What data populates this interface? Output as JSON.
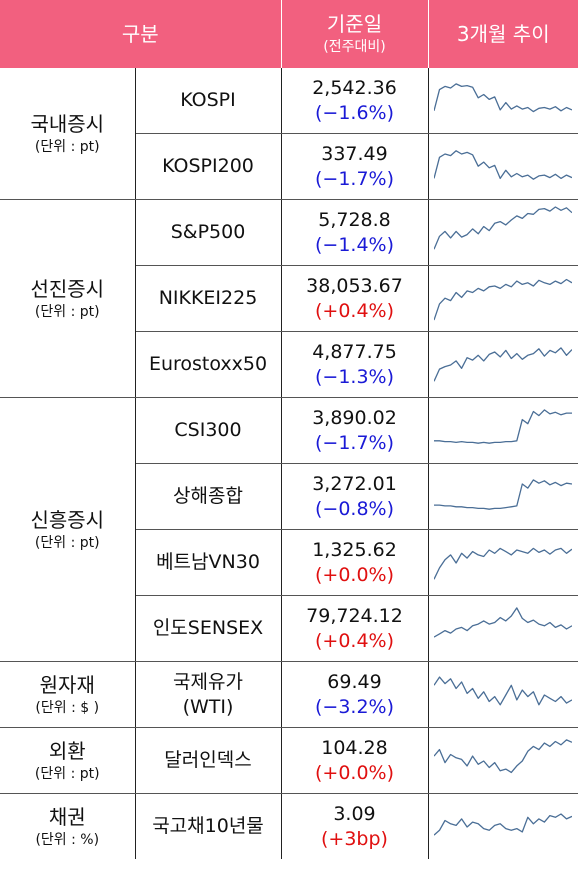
{
  "header": {
    "category": "구분",
    "base_date": "기준일",
    "base_date_sub": "(전주대비)",
    "trend": "3개월 추이"
  },
  "colors": {
    "header_bg": "#f2607f",
    "negative": "#1a1ad6",
    "positive": "#e01010",
    "sparkline": "#4a6e96"
  },
  "groups": [
    {
      "name": "국내증시",
      "unit": "(단위 : pt)"
    },
    {
      "name": "선진증시",
      "unit": "(단위 : pt)"
    },
    {
      "name": "신흥증시",
      "unit": "(단위 : pt)"
    },
    {
      "name": "원자재",
      "unit": "(단위 : $ )"
    },
    {
      "name": "외환",
      "unit": "(단위 : pt)"
    },
    {
      "name": "채권",
      "unit": "(단위 : %)"
    }
  ],
  "rows": [
    {
      "label": "KOSPI",
      "value": "2,542.36",
      "change": "(−1.6%)",
      "dir": "neg"
    },
    {
      "label": "KOSPI200",
      "value": "337.49",
      "change": "(−1.7%)",
      "dir": "neg"
    },
    {
      "label": "S&P500",
      "value": "5,728.8",
      "change": "(−1.4%)",
      "dir": "neg"
    },
    {
      "label": "NIKKEI225",
      "value": "38,053.67",
      "change": "(+0.4%)",
      "dir": "pos"
    },
    {
      "label": "Eurostoxx50",
      "value": "4,877.75",
      "change": "(−1.3%)",
      "dir": "neg"
    },
    {
      "label": "CSI300",
      "value": "3,890.02",
      "change": "(−1.7%)",
      "dir": "neg"
    },
    {
      "label": "상해종합",
      "value": "3,272.01",
      "change": "(−0.8%)",
      "dir": "neg"
    },
    {
      "label": "베트남VN30",
      "value": "1,325.62",
      "change": "(+0.0%)",
      "dir": "pos"
    },
    {
      "label": "인도SENSEX",
      "value": "79,724.12",
      "change": "(+0.4%)",
      "dir": "pos"
    },
    {
      "label": "국제유가",
      "label2": "(WTI)",
      "value": "69.49",
      "change": "(−3.2%)",
      "dir": "neg"
    },
    {
      "label": "달러인덱스",
      "value": "104.28",
      "change": "(+0.0%)",
      "dir": "pos"
    },
    {
      "label": "국고채10년물",
      "value": "3.09",
      "change": "(+3bp)",
      "dir": "pos"
    }
  ],
  "chart_data": [
    {
      "type": "line",
      "name": "KOSPI",
      "values": [
        20,
        46,
        50,
        48,
        53,
        50,
        51,
        49,
        36,
        40,
        34,
        37,
        21,
        30,
        22,
        26,
        22,
        24,
        19,
        23,
        24,
        22,
        25,
        20,
        24,
        21
      ]
    },
    {
      "type": "line",
      "name": "KOSPI200",
      "values": [
        18,
        44,
        48,
        46,
        52,
        48,
        50,
        47,
        33,
        38,
        31,
        34,
        18,
        28,
        20,
        24,
        20,
        22,
        17,
        21,
        22,
        19,
        23,
        18,
        22,
        19
      ]
    },
    {
      "type": "line",
      "name": "S&P500",
      "values": [
        12,
        28,
        34,
        26,
        34,
        27,
        30,
        37,
        31,
        40,
        35,
        44,
        46,
        42,
        48,
        53,
        50,
        56,
        55,
        61,
        62,
        59,
        64,
        60,
        63,
        57
      ]
    },
    {
      "type": "line",
      "name": "NIKKEI225",
      "values": [
        6,
        26,
        33,
        30,
        40,
        34,
        42,
        40,
        45,
        42,
        47,
        48,
        45,
        50,
        47,
        54,
        50,
        52,
        48,
        55,
        52,
        50,
        54,
        51,
        56,
        52
      ]
    },
    {
      "type": "line",
      "name": "Eurostoxx50",
      "values": [
        12,
        27,
        30,
        32,
        37,
        28,
        41,
        38,
        44,
        37,
        45,
        48,
        42,
        50,
        40,
        46,
        39,
        44,
        46,
        52,
        43,
        50,
        47,
        53,
        44,
        51
      ]
    },
    {
      "type": "line",
      "name": "CSI300",
      "values": [
        20,
        20,
        19,
        19,
        18,
        19,
        18,
        18,
        17,
        18,
        17,
        18,
        18,
        19,
        19,
        20,
        46,
        41,
        56,
        51,
        58,
        53,
        55,
        52,
        54,
        54
      ]
    },
    {
      "type": "line",
      "name": "상해종합",
      "values": [
        22,
        22,
        21,
        21,
        20,
        20,
        19,
        19,
        18,
        18,
        17,
        18,
        18,
        19,
        20,
        21,
        48,
        43,
        53,
        49,
        52,
        47,
        50,
        46,
        49,
        48
      ]
    },
    {
      "type": "line",
      "name": "베트남VN30",
      "values": [
        12,
        26,
        36,
        42,
        32,
        44,
        38,
        46,
        42,
        40,
        48,
        44,
        50,
        46,
        42,
        48,
        46,
        44,
        50,
        45,
        48,
        43,
        48,
        50,
        44,
        49
      ]
    },
    {
      "type": "line",
      "name": "인도SENSEX",
      "values": [
        22,
        26,
        30,
        27,
        32,
        34,
        30,
        36,
        38,
        42,
        38,
        40,
        46,
        42,
        48,
        58,
        45,
        40,
        43,
        38,
        36,
        40,
        34,
        37,
        32,
        36
      ]
    },
    {
      "type": "line",
      "name": "국제유가",
      "values": [
        44,
        54,
        46,
        52,
        40,
        48,
        34,
        40,
        28,
        36,
        24,
        30,
        20,
        32,
        44,
        26,
        38,
        30,
        36,
        20,
        32,
        28,
        24,
        30,
        22,
        26
      ]
    },
    {
      "type": "line",
      "name": "달러인덱스",
      "values": [
        38,
        46,
        30,
        40,
        36,
        34,
        26,
        38,
        28,
        32,
        24,
        30,
        20,
        22,
        18,
        26,
        32,
        44,
        50,
        46,
        54,
        50,
        56,
        52,
        58,
        55
      ]
    },
    {
      "type": "line",
      "name": "국고채10년물",
      "values": [
        22,
        28,
        40,
        36,
        34,
        42,
        32,
        38,
        36,
        30,
        28,
        34,
        36,
        30,
        28,
        30,
        26,
        44,
        36,
        42,
        38,
        46,
        44,
        48,
        42,
        45
      ]
    }
  ]
}
